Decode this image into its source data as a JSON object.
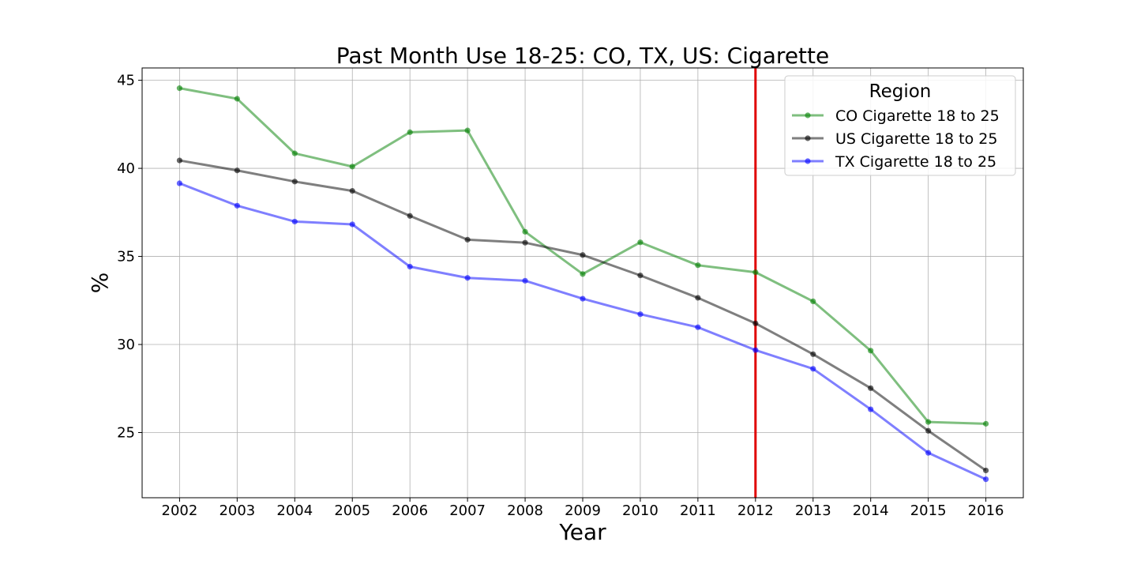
{
  "chart_data": {
    "type": "line",
    "title": "Past Month Use 18-25: CO, TX, US: Cigarette",
    "xlabel": "Year",
    "ylabel": "%",
    "x": [
      "2002",
      "2003",
      "2004",
      "2005",
      "2006",
      "2007",
      "2008",
      "2009",
      "2010",
      "2011",
      "2012",
      "2013",
      "2014",
      "2015",
      "2016"
    ],
    "xlim": [
      2001.35,
      2016.65
    ],
    "ylim": [
      21.3,
      45.7
    ],
    "yticks": [
      25,
      30,
      35,
      40,
      45
    ],
    "grid": true,
    "legend": {
      "title": "Region",
      "position": "top-right"
    },
    "series": [
      {
        "name": "CO Cigarette 18 to 25",
        "color": "#008000",
        "values": [
          44.55,
          43.95,
          40.85,
          40.1,
          42.05,
          42.15,
          36.4,
          34.0,
          35.8,
          34.5,
          34.1,
          32.45,
          29.65,
          25.6,
          25.5
        ]
      },
      {
        "name": "US Cigarette 18 to 25",
        "color": "#000000",
        "values": [
          40.45,
          39.88,
          39.25,
          38.72,
          37.3,
          35.95,
          35.78,
          35.08,
          33.92,
          32.65,
          31.2,
          29.45,
          27.52,
          25.1,
          22.85
        ]
      },
      {
        "name": "TX Cigarette 18 to 25",
        "color": "#0000ff",
        "values": [
          39.15,
          37.88,
          36.98,
          36.82,
          34.42,
          33.78,
          33.62,
          32.6,
          31.72,
          30.98,
          29.68,
          28.62,
          26.32,
          23.85,
          22.35
        ]
      }
    ],
    "reference_line": {
      "x": 2012,
      "color": "#e00000"
    }
  }
}
